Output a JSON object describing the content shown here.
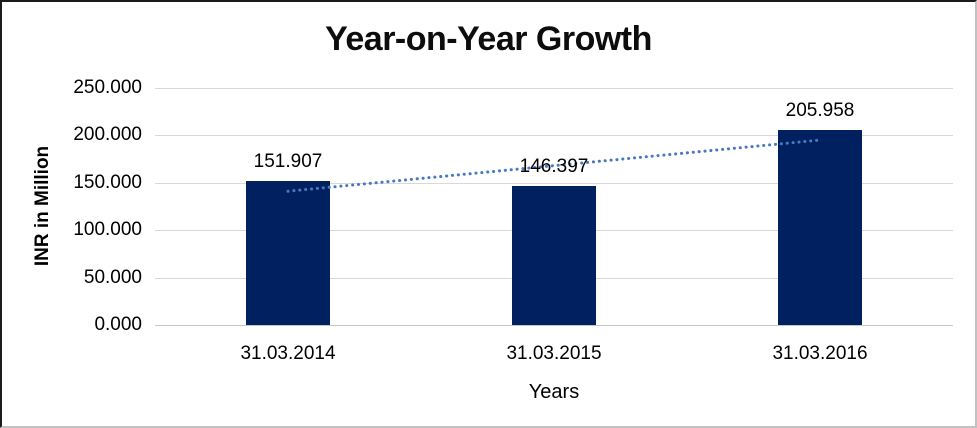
{
  "chart_data": {
    "type": "bar",
    "title": "Year-on-Year Growth",
    "xlabel": "Years",
    "ylabel": "INR in Million",
    "categories": [
      "31.03.2014",
      "31.03.2015",
      "31.03.2016"
    ],
    "values": [
      151.907,
      146.397,
      205.958
    ],
    "data_labels": [
      "151.907",
      "146.397",
      "205.958"
    ],
    "ylim": [
      0,
      250
    ],
    "ytick_values": [
      0,
      50,
      100,
      150,
      200,
      250
    ],
    "ytick_labels": [
      "0.000",
      "50.000",
      "100.000",
      "150.000",
      "200.000",
      "250.000"
    ],
    "grid": true,
    "legend": false,
    "bar_color": "#002060",
    "gridline_color": "#d8d8d8",
    "trendline": {
      "type": "linear",
      "style": "dotted",
      "color": "#4878be",
      "start_value": 141.1,
      "end_value": 195.1
    }
  }
}
